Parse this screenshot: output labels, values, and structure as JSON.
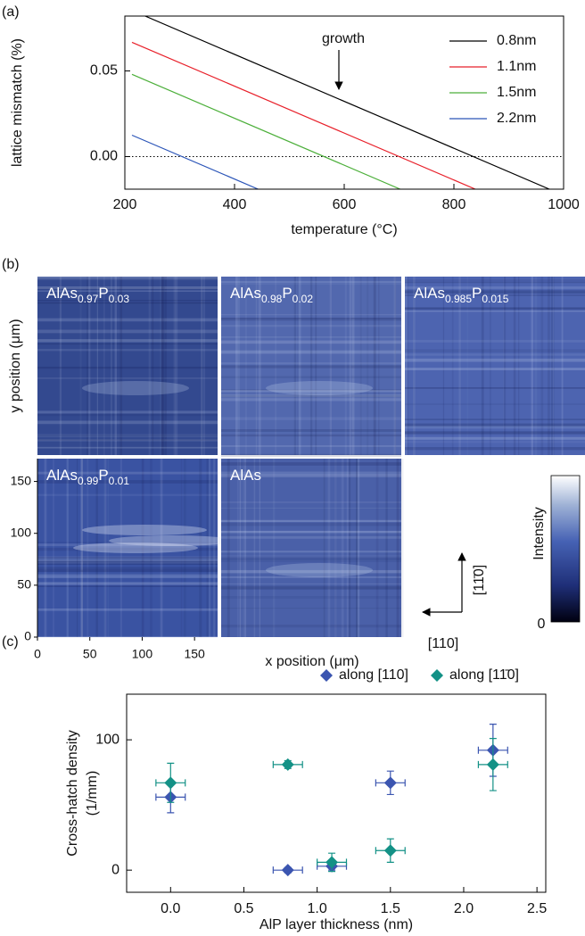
{
  "chart_data": [
    {
      "type": "line",
      "panel_label": "(a)",
      "xlabel": "temperature (°C)",
      "ylabel": "lattice mismatch (%)",
      "xlim": [
        200,
        1000
      ],
      "ylim": [
        -0.019,
        0.082
      ],
      "xticks": [
        200,
        400,
        600,
        800,
        1000
      ],
      "yticks": [
        {
          "value": 0,
          "label": "0.00"
        },
        {
          "value": 0.05,
          "label": "0.05"
        }
      ],
      "reference_line": 0,
      "annotation": "growth",
      "legend": "upper right",
      "series": [
        {
          "name": "0.8nm",
          "color": "#000000",
          "x": [
            237,
            974
          ],
          "values": [
            0.082,
            -0.019
          ]
        },
        {
          "name": "1.1nm",
          "color": "#e8202a",
          "x": [
            213,
            839
          ],
          "values": [
            0.0667,
            -0.019
          ]
        },
        {
          "name": "1.5nm",
          "color": "#4caf3a",
          "x": [
            213,
            702
          ],
          "values": [
            0.048,
            -0.019
          ]
        },
        {
          "name": "2.2nm",
          "color": "#2b55b8",
          "x": [
            213,
            443
          ],
          "values": [
            0.0125,
            -0.019
          ]
        }
      ]
    },
    {
      "type": "image",
      "panel_label": "(b)",
      "xlabel": "x position (μm)",
      "ylabel": "y position (μm)",
      "xlim": [
        0,
        172
      ],
      "ylim": [
        0,
        172
      ],
      "xticks": [
        0,
        50,
        100,
        150
      ],
      "yticks": [
        0,
        50,
        100,
        150
      ],
      "panels": [
        {
          "parts": [
            "AlAs",
            "0.97",
            "P",
            "0.03"
          ]
        },
        {
          "parts": [
            "AlAs",
            "0.98",
            "P",
            "0.02"
          ]
        },
        {
          "parts": [
            "AlAs",
            "0.985",
            "P",
            "0.015"
          ]
        },
        {
          "parts": [
            "AlAs",
            "0.99",
            "P",
            "0.01"
          ]
        },
        {
          "parts": [
            "AlAs"
          ]
        }
      ],
      "colorbar": {
        "label": "Intensity",
        "ticks": [
          0
        ]
      },
      "directions": [
        "[110]",
        "[11̄0]"
      ]
    },
    {
      "type": "scatter",
      "panel_label": "(c)",
      "xlabel": "AlP layer thickness (nm)",
      "ylabel": [
        "Cross-hatch density",
        "(1/mm)"
      ],
      "xlim": [
        -0.3,
        2.56
      ],
      "ylim": [
        -17,
        135
      ],
      "xticks": [
        {
          "value": 0,
          "label": "0.0"
        },
        {
          "value": 0.5,
          "label": "0.5"
        },
        {
          "value": 1,
          "label": "1.0"
        },
        {
          "value": 1.5,
          "label": "1.5"
        },
        {
          "value": 2,
          "label": "2.0"
        },
        {
          "value": 2.5,
          "label": "2.5"
        }
      ],
      "yticks": [
        0,
        100
      ],
      "legend": "above",
      "series": [
        {
          "name": "along [110]",
          "color": "#3b55b0",
          "x": [
            0,
            0.8,
            1.1,
            1.5,
            2.2
          ],
          "values": [
            56,
            0,
            3,
            67,
            92
          ],
          "yerr": [
            12,
            2,
            3,
            9,
            20
          ],
          "xerr": [
            0.1,
            0.1,
            0.1,
            0.1,
            0.1
          ]
        },
        {
          "name": "along [11̄0]",
          "color": "#139186",
          "x": [
            0,
            0.8,
            1.1,
            1.5,
            2.2
          ],
          "values": [
            67,
            81,
            6,
            15,
            81
          ],
          "yerr": [
            15,
            3,
            7,
            9,
            20
          ],
          "xerr": [
            0.1,
            0.1,
            0.1,
            0.1,
            0.1
          ]
        }
      ]
    }
  ]
}
